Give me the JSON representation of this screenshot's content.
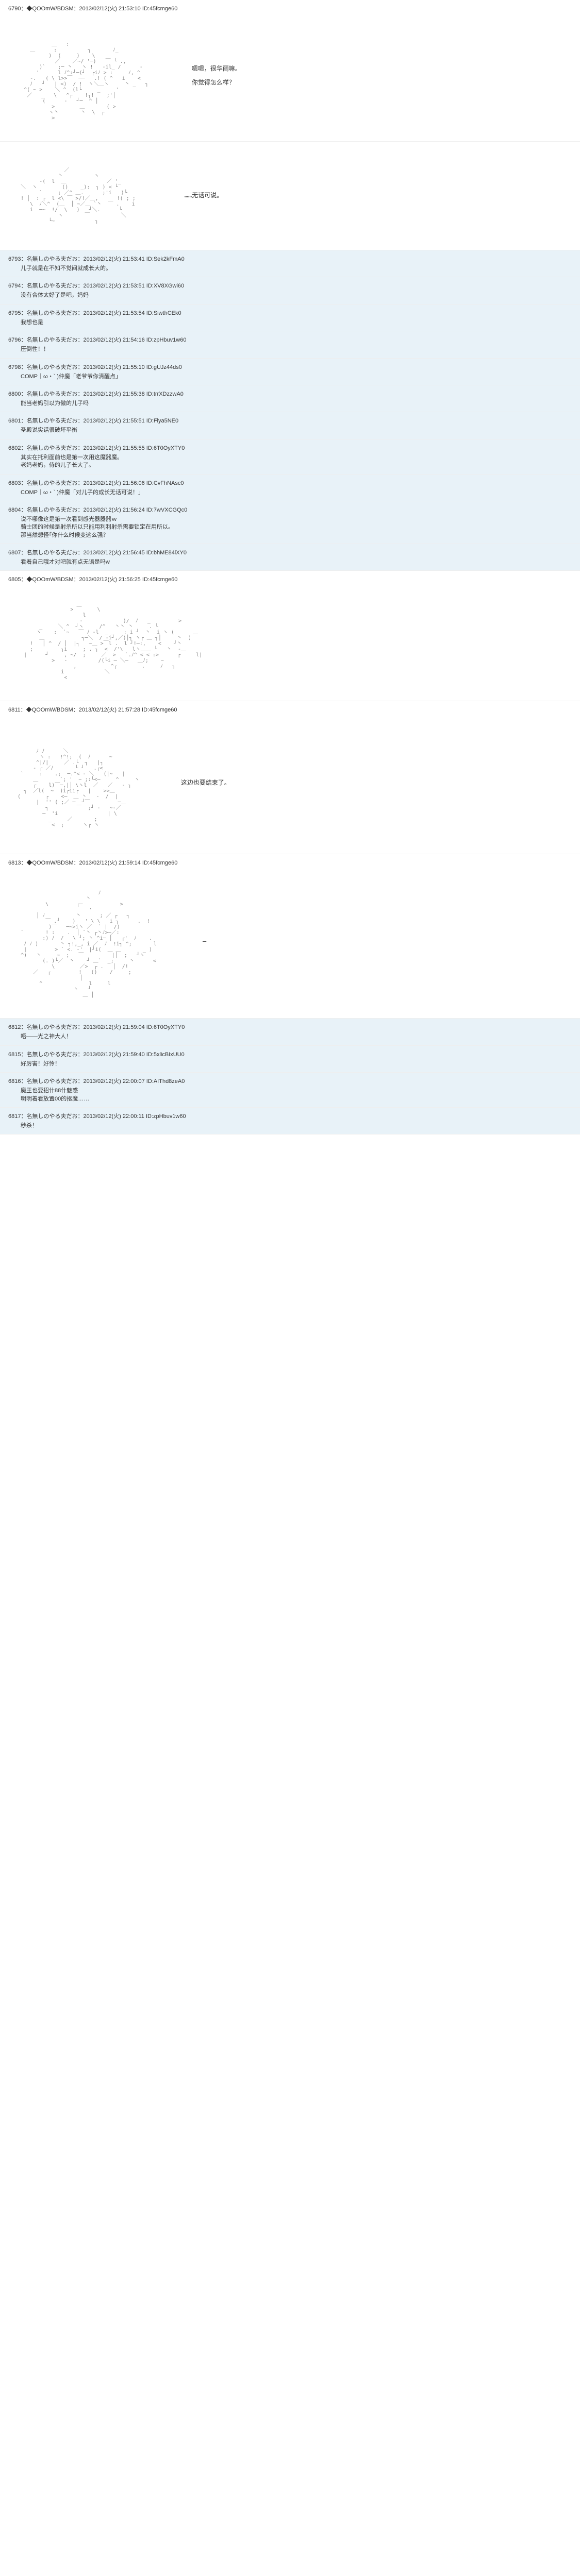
{
  "posts": [
    {
      "num": "6790",
      "author": "◆QOOmW/BDSM",
      "date": "2013/02/12(火) 21:53:10",
      "id": "ID:45fcmge60",
      "hasArt": true,
      "artLines": 18,
      "artWidth": 280,
      "dialogue": [
        "嗯嗯，很华丽嘛。",
        "你觉得怎么样？"
      ],
      "alt": false
    },
    {
      "num": "",
      "author": "",
      "date": "",
      "id": "",
      "hasArt": true,
      "artLines": 14,
      "artWidth": 260,
      "dialogue": [
        "……无话可说。"
      ],
      "alt": false,
      "continuation": true
    },
    {
      "num": "6793",
      "author": "名無しのやる夫だお",
      "date": "2013/02/12(火) 21:53:41",
      "id": "ID:Sek2kFmA0",
      "body": "儿子就是在不知不觉间就成长大的。",
      "alt": true
    },
    {
      "num": "6794",
      "author": "名無しのやる夫だお",
      "date": "2013/02/12(火) 21:53:51",
      "id": "ID:XV8XGwi60",
      "body": "没有合体太好了是吧，妈妈",
      "alt": true
    },
    {
      "num": "6795",
      "author": "名無しのやる夫だお",
      "date": "2013/02/12(火) 21:53:54",
      "id": "ID:SiwthCEk0",
      "body": "我想也是",
      "alt": true
    },
    {
      "num": "6796",
      "author": "名無しのやる夫だお",
      "date": "2013/02/12(火) 21:54:16",
      "id": "ID:zpHbuv1w60",
      "body": "压倒性！！",
      "alt": true
    },
    {
      "num": "6798",
      "author": "名無しのやる夫だお",
      "date": "2013/02/12(火) 21:55:10",
      "id": "ID:gUJz44ds0",
      "body": "COMP｜ω・` )仲魔「老爷爷你清醒点」",
      "alt": true
    },
    {
      "num": "6800",
      "author": "名無しのやる夫だお",
      "date": "2013/02/12(火) 21:55:38",
      "id": "ID:trrXDzzwA0",
      "body": "能当老妈引以为傲的儿子吗",
      "alt": true
    },
    {
      "num": "6801",
      "author": "名無しのやる夫だお",
      "date": "2013/02/12(火) 21:55:51",
      "id": "ID:Flya5NE0",
      "body": "圣殿说实话很破坏平衡",
      "alt": true
    },
    {
      "num": "6802",
      "author": "名無しのやる夫だお",
      "date": "2013/02/12(火) 21:55:55",
      "id": "ID:6T0OyXTY0",
      "body": "其实在托利面前也是第一次用这魔器魔。\n老妈老妈，侍的儿子长大了。",
      "alt": true
    },
    {
      "num": "6803",
      "author": "名無しのやる夫だお",
      "date": "2013/02/12(火) 21:56:06",
      "id": "ID:CvFhNAsc0",
      "body": "COMP｜ω・` )仲魔「对儿子的成长无话可说！」",
      "alt": true
    },
    {
      "num": "6804",
      "author": "名無しのやる夫だお",
      "date": "2013/02/12(火) 21:56:24",
      "id": "ID:7wVXCGQc0",
      "body": "说不哪像这是第一次看到感光器器器ｗ\n骑士团的时候是射杀所以只能用利利射杀需要锁定在用所以。\n那当然想怪｢你什么时候变这么强？",
      "alt": true
    },
    {
      "num": "6807",
      "author": "名無しのやる夫だお",
      "date": "2013/02/12(火) 21:56:45",
      "id": "ID:bhME84iXY0",
      "body": "看着自己哦才对吧就有点无语是吗w",
      "alt": true
    },
    {
      "num": "6805",
      "author": "◆QOOmW/BDSM",
      "date": "2013/02/12(火) 21:56:25",
      "id": "ID:45fcmge60",
      "hasArt": true,
      "artLines": 16,
      "artWidth": 400,
      "dialogue": [],
      "alt": false
    },
    {
      "num": "6811",
      "author": "◆QOOmW/BDSM",
      "date": "2013/02/12(火) 21:57:28",
      "id": "ID:45fcmge60",
      "hasArt": true,
      "artLines": 20,
      "artWidth": 260,
      "dialogue": [
        "这边也要结束了。"
      ],
      "alt": false
    },
    {
      "num": "6813",
      "author": "◆QOOmW/BDSM",
      "date": "2013/02/12(火) 21:59:14",
      "id": "ID:45fcmge60",
      "hasArt": true,
      "artLines": 22,
      "artWidth": 300,
      "dialogue": [
        "—"
      ],
      "alt": false
    },
    {
      "num": "6812",
      "author": "名無しのやる夫だお",
      "date": "2013/02/12(火) 21:59:04",
      "id": "ID:6T0OyXTY0",
      "body": "唔——光之神大人！",
      "alt": true
    },
    {
      "num": "6815",
      "author": "名無しのやる夫だお",
      "date": "2013/02/12(火) 21:59:40",
      "id": "ID:5xlicBIxUU0",
      "body": "好厉害！好怜！",
      "alt": true
    },
    {
      "num": "6816",
      "author": "名無しのやる夫だお",
      "date": "2013/02/12(火) 22:00:07",
      "id": "ID:AIThd8zeA0",
      "body": "魔王也要招什88什魅惑\n明明着看放置00的抠魔……",
      "alt": true
    },
    {
      "num": "6817",
      "author": "名無しのやる夫だお",
      "date": "2013/02/12(火) 22:00:11",
      "id": "ID:zpHbuv1w60",
      "body": "秒杀！",
      "alt": true
    }
  ],
  "artChars": [
    "'",
    ".",
    ",",
    "/",
    "\\",
    "|",
    "_",
    "-",
    "~",
    "^",
    "(",
    ")",
    "<",
    ">",
    ":",
    ";",
    "`",
    "i",
    "l",
    "!",
    "ﾉ",
    "ヽ",
    "丶",
    "￣",
    "＿",
    "／",
    "＼",
    "│",
    "─",
    "┌",
    "┐",
    "└",
    "┘"
  ]
}
